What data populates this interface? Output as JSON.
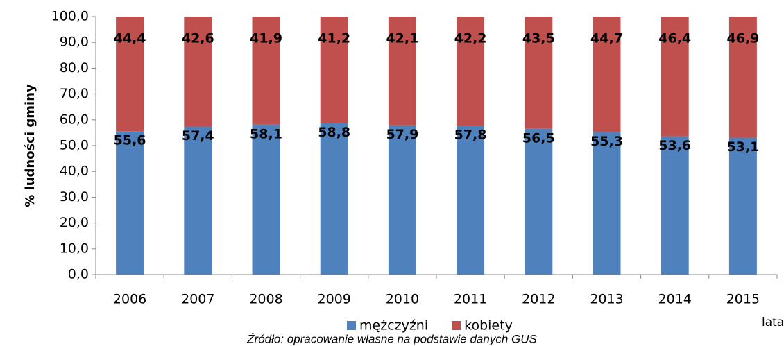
{
  "chart_data": {
    "type": "stacked_bar",
    "y_axis_label": "% ludności gminy",
    "x_axis_label": "lata",
    "source": "Źródło: opracowanie własne na podstawie danych GUS",
    "categories": [
      "2006",
      "2007",
      "2008",
      "2009",
      "2010",
      "2011",
      "2012",
      "2013",
      "2014",
      "2015"
    ],
    "series": [
      {
        "name": "mężczyźni",
        "color": "#4f81bd",
        "values": [
          55.6,
          57.4,
          58.1,
          58.8,
          57.9,
          57.8,
          56.5,
          55.3,
          53.6,
          53.1
        ],
        "value_labels": [
          "55,6",
          "57,4",
          "58,1",
          "58,8",
          "57,9",
          "57,8",
          "56,5",
          "55,3",
          "53,6",
          "53,1"
        ]
      },
      {
        "name": "kobiety",
        "color": "#c0504d",
        "values": [
          44.4,
          42.6,
          41.9,
          41.2,
          42.1,
          42.2,
          43.5,
          44.7,
          46.4,
          46.9
        ],
        "value_labels": [
          "44,4",
          "42,6",
          "41,9",
          "41,2",
          "42,1",
          "42,2",
          "43,5",
          "44,7",
          "46,4",
          "46,9"
        ]
      }
    ],
    "ylim": [
      0,
      100
    ],
    "yticks": [
      {
        "value": 0,
        "label": "0,0"
      },
      {
        "value": 10,
        "label": "10,0"
      },
      {
        "value": 20,
        "label": "20,0"
      },
      {
        "value": 30,
        "label": "30,0"
      },
      {
        "value": 40,
        "label": "40,0"
      },
      {
        "value": 50,
        "label": "50,0"
      },
      {
        "value": 60,
        "label": "60,0"
      },
      {
        "value": 70,
        "label": "70,0"
      },
      {
        "value": 80,
        "label": "80,0"
      },
      {
        "value": 90,
        "label": "90,0"
      },
      {
        "value": 100,
        "label": "100,0"
      }
    ],
    "legend": "bottom"
  }
}
